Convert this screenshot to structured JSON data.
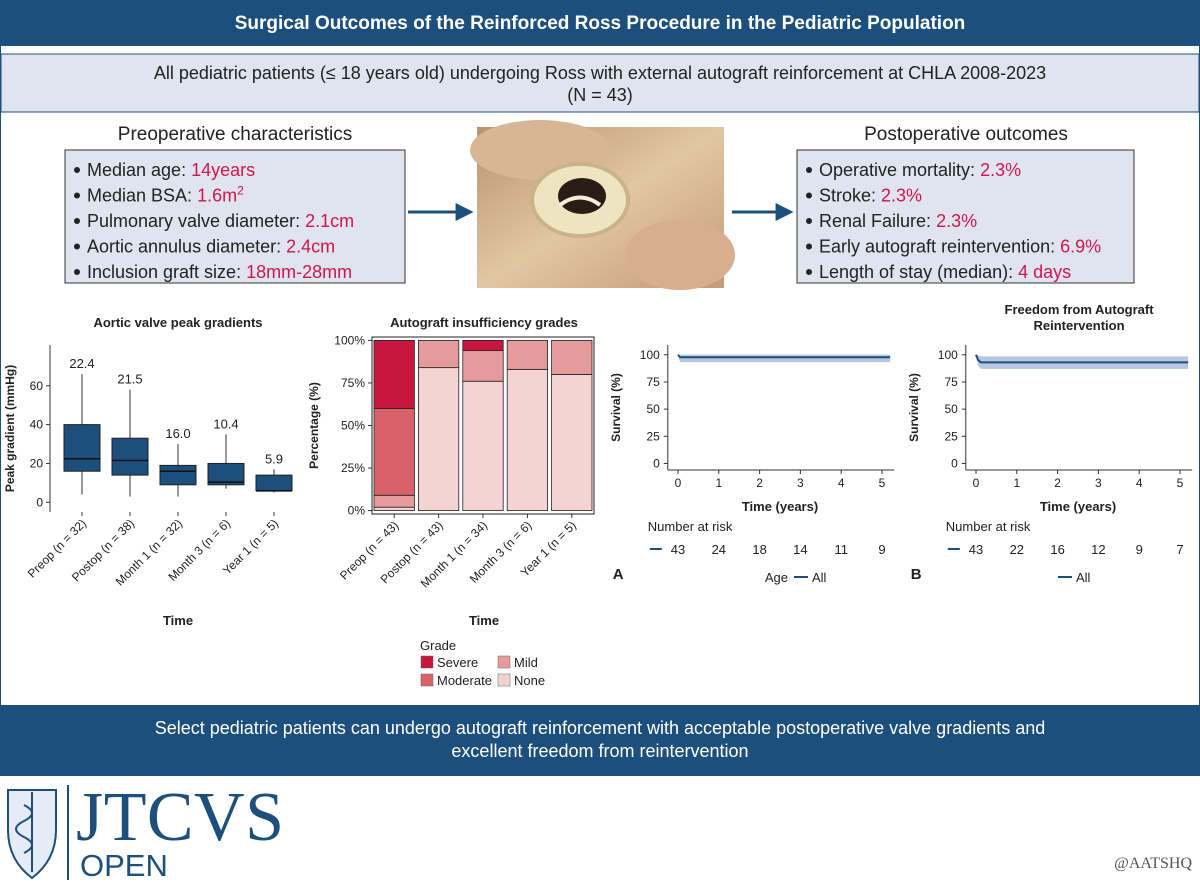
{
  "header": {
    "title": "Surgical Outcomes of the Reinforced Ross Procedure in the Pediatric Population"
  },
  "subtitle": {
    "lines": [
      "All pediatric patients (≤ 18 years old) undergoing Ross with external autograft reinforcement at CHLA 2008-2023",
      "(N = 43)"
    ]
  },
  "preop": {
    "title": "Preoperative characteristics",
    "items": [
      {
        "label": "Median age: ",
        "value": "14years"
      },
      {
        "label": "Median BSA: ",
        "value": "1.6m",
        "sup": "2"
      },
      {
        "label": "Pulmonary valve diameter: ",
        "value": "2.1cm"
      },
      {
        "label": "Aortic annulus diameter: ",
        "value": "2.4cm"
      },
      {
        "label": "Inclusion graft size: ",
        "value": "18mm-28mm"
      }
    ]
  },
  "postop": {
    "title": "Postoperative outcomes",
    "items": [
      {
        "label": "Operative mortality: ",
        "value": "2.3%"
      },
      {
        "label": "Stroke: ",
        "value": "2.3%"
      },
      {
        "label": "Renal Failure: ",
        "value": "2.3%"
      },
      {
        "label": "Early autograft reintervention: ",
        "value": "6.9%"
      },
      {
        "label": "Length of stay (median): ",
        "value": "4 days"
      }
    ]
  },
  "chart_data": [
    {
      "type": "box",
      "title": "Aortic valve peak gradients",
      "x_label": "Time",
      "y_label": "Peak gradient (mmHg)",
      "categories": [
        "Preop (n = 32)",
        "Postop (n = 38)",
        "Month 1 (n = 32)",
        "Month 3 (n = 6)",
        "Year 1 (n = 5)"
      ],
      "color": "#1d4f7c",
      "low": [
        4,
        3,
        3,
        7,
        5
      ],
      "q1": [
        16,
        14,
        9,
        9,
        6
      ],
      "median": [
        22.4,
        21.5,
        16.0,
        10.4,
        5.9
      ],
      "q3": [
        40,
        33,
        19,
        20,
        14
      ],
      "high": [
        66,
        58,
        30,
        35,
        17
      ],
      "median_labels": [
        "22.4",
        "21.5",
        "16.0",
        "10.4",
        "5.9"
      ],
      "ylim": [
        -5,
        81
      ],
      "yticks": [
        0,
        20,
        40,
        60
      ]
    },
    {
      "type": "stacked_bar",
      "title": "Autograft insufficiency grades",
      "x_label": "Time",
      "y_label": "Percentage (%)",
      "categories": [
        "Preop (n = 43)",
        "Postop (n = 43)",
        "Month 1 (n = 34)",
        "Month 3 (n = 6)",
        "Year 1 (n = 5)"
      ],
      "series": [
        {
          "name": "None",
          "color": "#f6d3d3",
          "values": [
            2,
            84,
            76,
            83,
            80
          ]
        },
        {
          "name": "Mild",
          "color": "#e79a9c",
          "values": [
            7,
            16,
            18,
            17,
            20
          ]
        },
        {
          "name": "Moderate",
          "color": "#d9616a",
          "values": [
            51,
            0,
            0,
            0,
            0
          ]
        },
        {
          "name": "Severe",
          "color": "#c8173f",
          "values": [
            40,
            0,
            6,
            0,
            0
          ]
        }
      ],
      "legend_title": "Grade",
      "ylim": [
        -2,
        102
      ],
      "yticks": [
        {
          "value": 0,
          "label": "0%"
        },
        {
          "value": 25,
          "label": "25%"
        },
        {
          "value": 50,
          "label": "50%"
        },
        {
          "value": 75,
          "label": "75%"
        },
        {
          "value": 100,
          "label": "100%"
        }
      ]
    },
    {
      "type": "survival",
      "y_label": "Survival (%)",
      "x_label": "Time (years)",
      "xlim": [
        -0.25,
        5.3
      ],
      "xticks": [
        0,
        1,
        2,
        3,
        4,
        5
      ],
      "ylim": [
        -6,
        109
      ],
      "yticks": [
        0,
        25,
        50,
        75,
        100
      ],
      "series": [
        {
          "name": "All",
          "color": "#1d4f7c",
          "band_color": "#b9c6df",
          "x": [
            0,
            0.05,
            5.2
          ],
          "values": [
            100,
            97.7,
            97.7
          ],
          "lower": [
            100,
            93.3,
            93.3
          ],
          "upper": [
            100,
            100,
            100
          ]
        }
      ],
      "risk_title": "Number at risk",
      "risk_x": [
        0,
        1,
        2,
        3,
        4,
        5
      ],
      "risk": [
        43,
        24,
        18,
        14,
        11,
        9
      ],
      "panel": "A",
      "legend_title": "Age"
    },
    {
      "type": "survival",
      "title": [
        "Freedom from Autograft",
        "Reintervention"
      ],
      "y_label": "Survival (%)",
      "x_label": "Time (years)",
      "xlim": [
        -0.25,
        5.3
      ],
      "xticks": [
        0,
        1,
        2,
        3,
        4,
        5
      ],
      "ylim": [
        -6,
        109
      ],
      "yticks": [
        0,
        25,
        50,
        75,
        100
      ],
      "series": [
        {
          "name": "All",
          "color": "#1d4f7c",
          "band_color": "#b9c6df",
          "x": [
            0,
            0.05,
            0.12,
            5.2
          ],
          "values": [
            100,
            95.3,
            93,
            93
          ],
          "lower": [
            100,
            90,
            87,
            87
          ],
          "upper": [
            100,
            99.5,
            98.5,
            98.5
          ]
        }
      ],
      "risk_title": "Number at risk",
      "risk_x": [
        0,
        1,
        2,
        3,
        4,
        5
      ],
      "risk": [
        43,
        22,
        16,
        12,
        9,
        7
      ],
      "panel": "B"
    }
  ],
  "footer": {
    "lines": [
      "Select pediatric patients can undergo autograft reinforcement with acceptable postoperative valve gradients and",
      "excellent freedom from reintervention"
    ]
  },
  "logo": {
    "name": "JTCVS",
    "sub": "OPEN"
  },
  "handle": "@AATSHQ"
}
